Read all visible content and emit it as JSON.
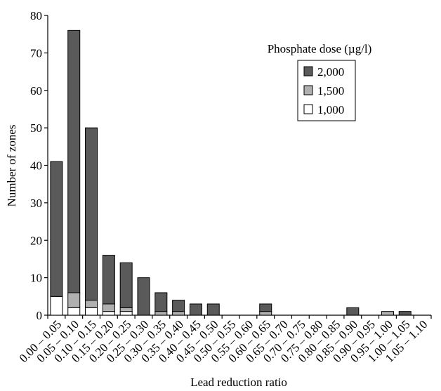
{
  "chart_data": {
    "type": "stacked_bar",
    "x_label": "Lead reduction ratio",
    "y_label": "Number of zones",
    "legend_title": "Phosphate dose (µg/l)",
    "legend_position": "upper right",
    "categories": [
      "0.00 – 0.05",
      "0.05 – 0.10",
      "0.10 – 0.15",
      "0.15 – 0.20",
      "0.20 – 0.25",
      "0.25 – 0.30",
      "0.30 – 0.35",
      "0.35 – 0.40",
      "0.40 – 0.45",
      "0.45 – 0.50",
      "0.50 – 0.55",
      "0.55 – 0.60",
      "0.60 – 0.65",
      "0.65 – 0.70",
      "0.70 – 0.75",
      "0.75 – 0.80",
      "0.80 – 0.85",
      "0.85 – 0.90",
      "0.90 – 0.95",
      "0.95 – 1.00",
      "1.00 – 1.05",
      "1.05 – 1.10"
    ],
    "series": [
      {
        "name": "1,000",
        "color": "#ffffff",
        "values": [
          5,
          2,
          2,
          1,
          1,
          0,
          0,
          0,
          0,
          0,
          0,
          0,
          0,
          0,
          0,
          0,
          0,
          0,
          0,
          0,
          0,
          0
        ]
      },
      {
        "name": "1,500",
        "color": "#b0b0b0",
        "values": [
          0,
          4,
          2,
          2,
          1,
          0,
          1,
          1,
          0,
          0,
          0,
          0,
          1,
          0,
          0,
          0,
          0,
          0,
          0,
          1,
          0,
          0
        ]
      },
      {
        "name": "2,000",
        "color": "#5a5a5a",
        "values": [
          36,
          70,
          46,
          13,
          12,
          10,
          5,
          3,
          3,
          3,
          0,
          0,
          2,
          0,
          0,
          0,
          0,
          2,
          0,
          0,
          1,
          0
        ]
      }
    ],
    "ylim": [
      0,
      80
    ],
    "yticks": [
      0,
      10,
      20,
      30,
      40,
      50,
      60,
      70,
      80
    ],
    "grid": false
  }
}
